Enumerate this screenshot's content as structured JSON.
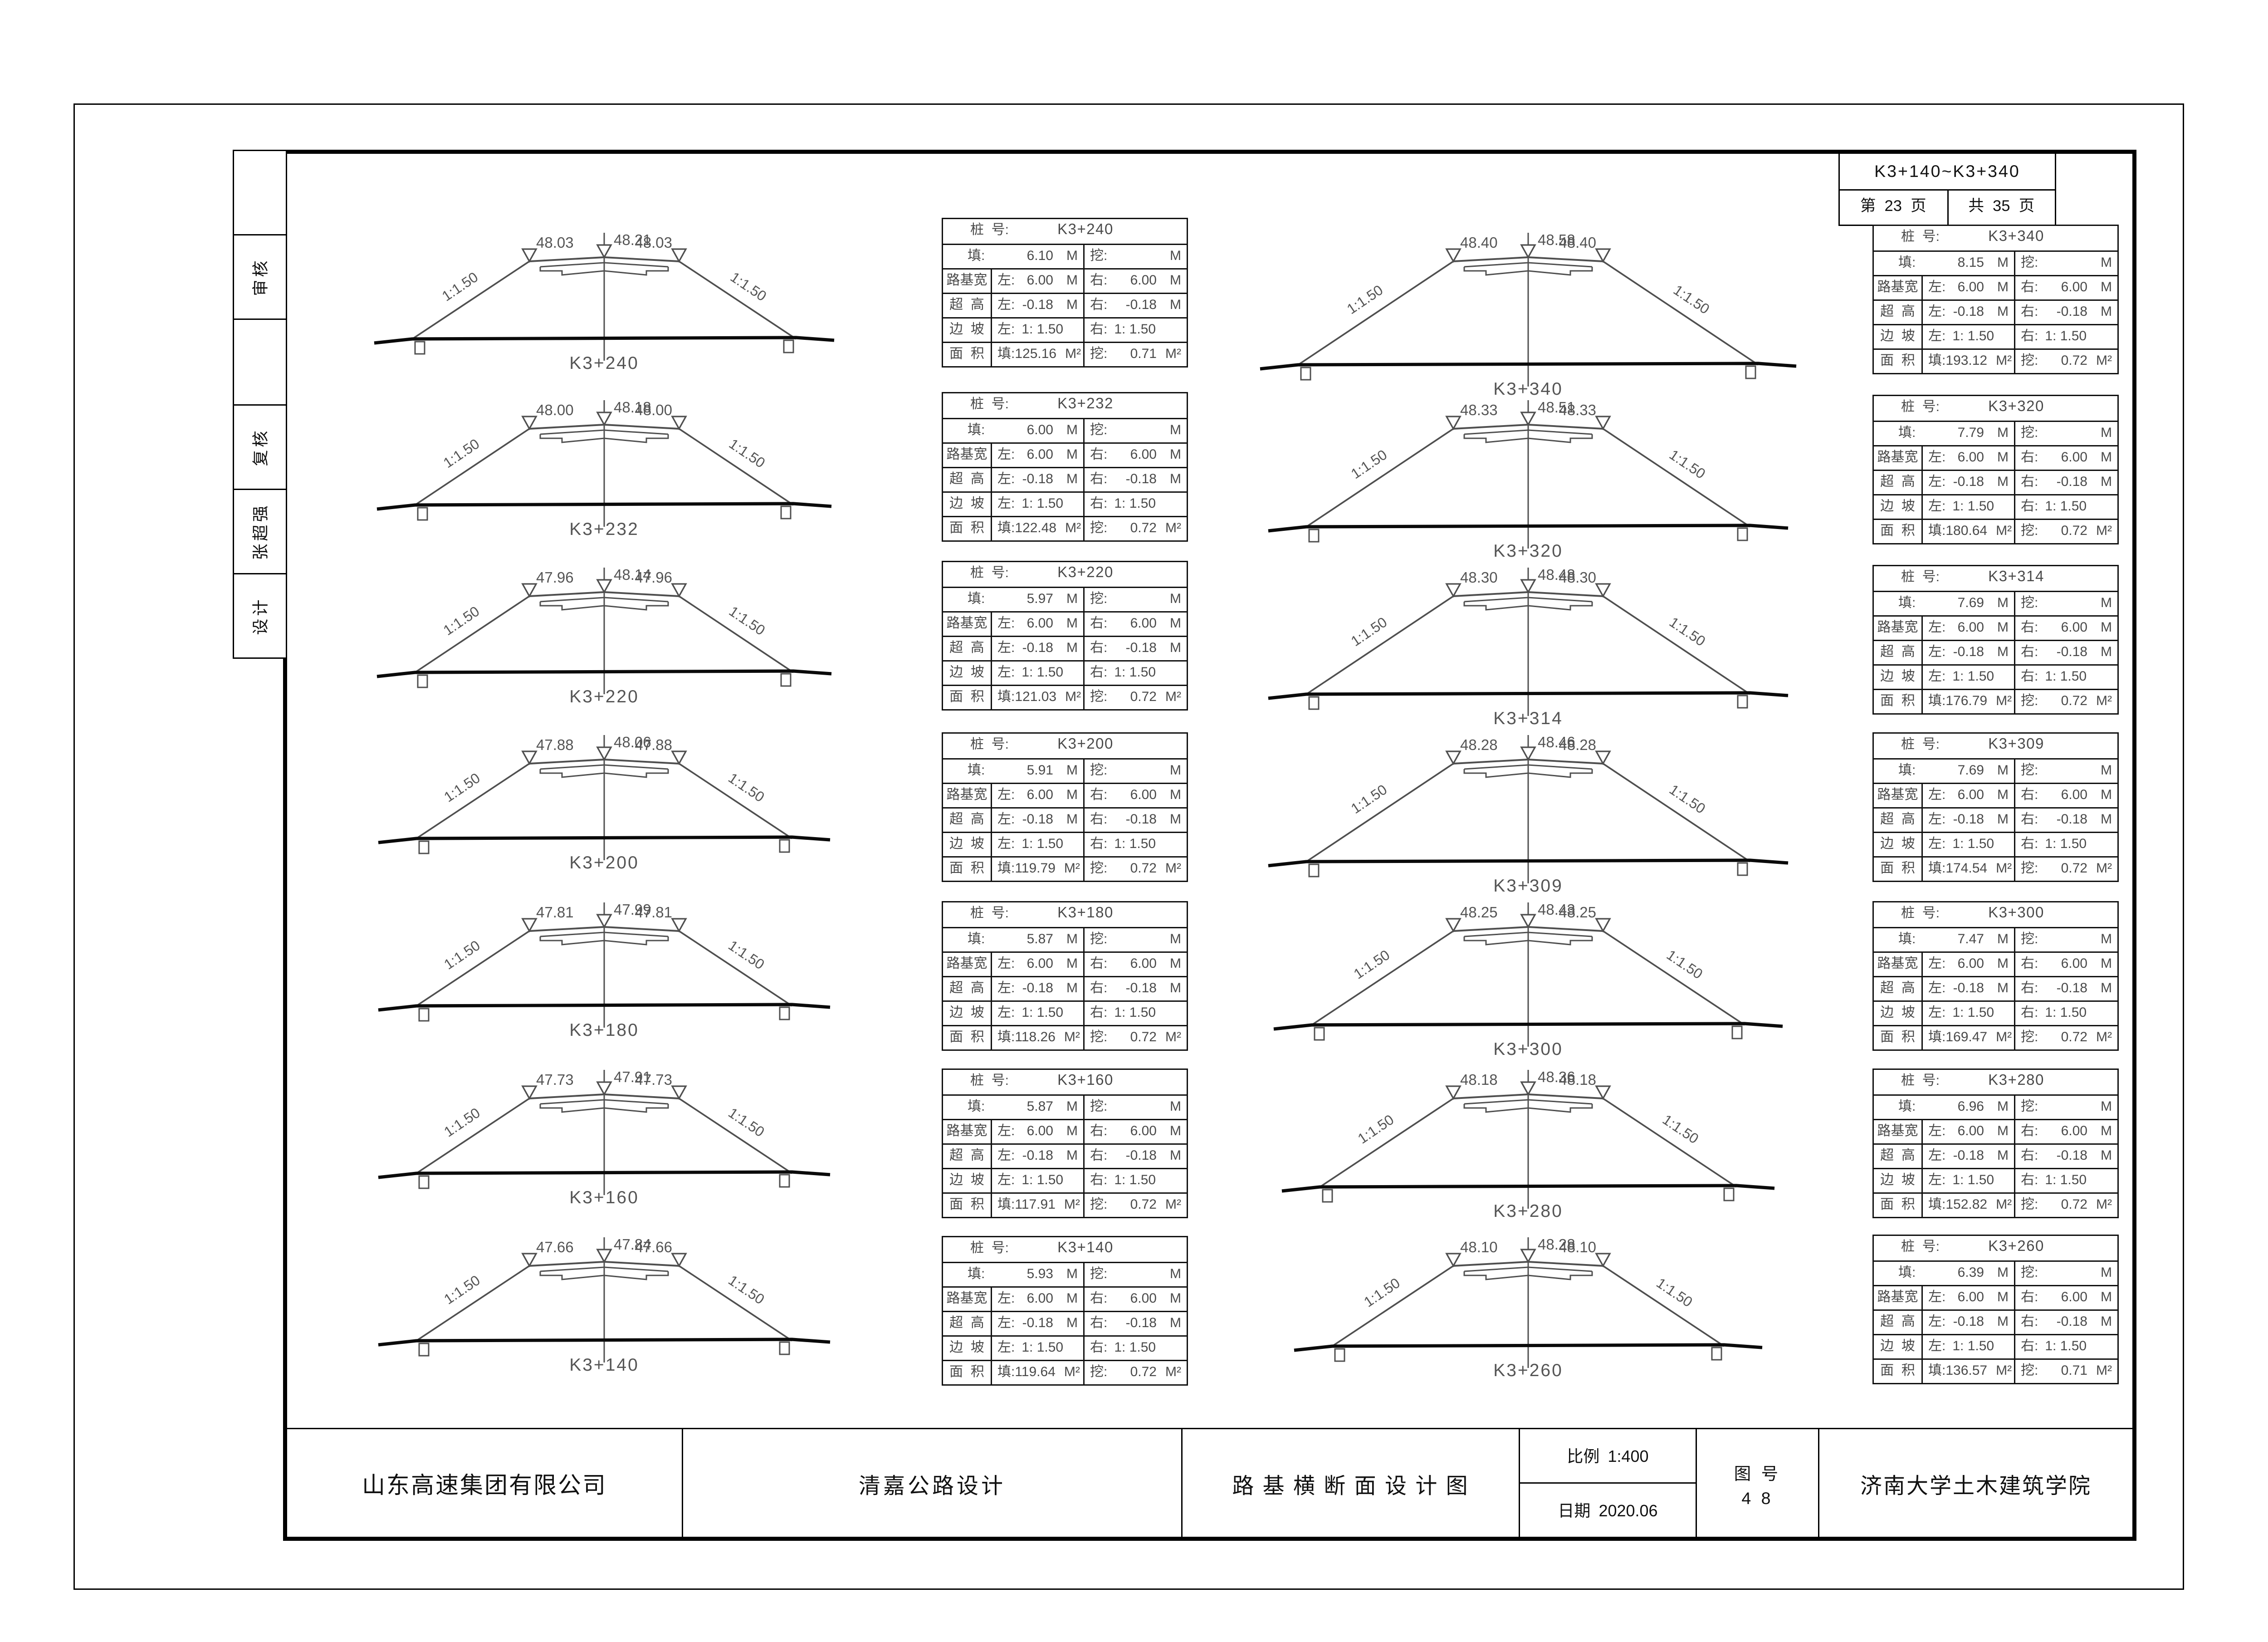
{
  "page_header": {
    "station_range": "K3+140~K3+340",
    "page_no": "第  23  页",
    "pages_total": "共  35  页"
  },
  "signature_strip": {
    "cells": [
      "",
      "审核",
      "",
      "复核",
      "张超强",
      "设计"
    ]
  },
  "table_labels": {
    "station": "桩  号:",
    "fill": "填:",
    "cut": "挖:",
    "roadbed": "路基宽",
    "superelev": "超  高",
    "slope": "边  坡",
    "area": "面  积",
    "left": "左:",
    "right": "右:",
    "m": "M",
    "m2": "M²"
  },
  "common_values": {
    "roadbed_left": "6.00",
    "roadbed_right": "6.00",
    "superelev_left": "-0.18",
    "superelev_right": "-0.18",
    "slope_left": "1: 1.50",
    "slope_right": "1: 1.50",
    "cut_depth": "",
    "slope_annotation": "1:1.50"
  },
  "columns": {
    "left_sections": [
      {
        "station": "K3+240",
        "elev_left": "48.03",
        "elev_center": "48.21",
        "elev_right": "48.03",
        "fill_height": "6.10",
        "area_fill": "125.16",
        "area_cut": "0.71"
      },
      {
        "station": "K3+232",
        "elev_left": "48.00",
        "elev_center": "48.18",
        "elev_right": "48.00",
        "fill_height": "6.00",
        "area_fill": "122.48",
        "area_cut": "0.72"
      },
      {
        "station": "K3+220",
        "elev_left": "47.96",
        "elev_center": "48.14",
        "elev_right": "47.96",
        "fill_height": "5.97",
        "area_fill": "121.03",
        "area_cut": "0.72"
      },
      {
        "station": "K3+200",
        "elev_left": "47.88",
        "elev_center": "48.06",
        "elev_right": "47.88",
        "fill_height": "5.91",
        "area_fill": "119.79",
        "area_cut": "0.72"
      },
      {
        "station": "K3+180",
        "elev_left": "47.81",
        "elev_center": "47.99",
        "elev_right": "47.81",
        "fill_height": "5.87",
        "area_fill": "118.26",
        "area_cut": "0.72"
      },
      {
        "station": "K3+160",
        "elev_left": "47.73",
        "elev_center": "47.91",
        "elev_right": "47.73",
        "fill_height": "5.87",
        "area_fill": "117.91",
        "area_cut": "0.72"
      },
      {
        "station": "K3+140",
        "elev_left": "47.66",
        "elev_center": "47.84",
        "elev_right": "47.66",
        "fill_height": "5.93",
        "area_fill": "119.64",
        "area_cut": "0.72"
      }
    ],
    "right_sections": [
      {
        "station": "K3+340",
        "elev_left": "48.40",
        "elev_center": "48.58",
        "elev_right": "48.40",
        "fill_height": "8.15",
        "area_fill": "193.12",
        "area_cut": "0.72"
      },
      {
        "station": "K3+320",
        "elev_left": "48.33",
        "elev_center": "48.51",
        "elev_right": "48.33",
        "fill_height": "7.79",
        "area_fill": "180.64",
        "area_cut": "0.72"
      },
      {
        "station": "K3+314",
        "elev_left": "48.30",
        "elev_center": "48.48",
        "elev_right": "48.30",
        "fill_height": "7.69",
        "area_fill": "176.79",
        "area_cut": "0.72"
      },
      {
        "station": "K3+309",
        "elev_left": "48.28",
        "elev_center": "48.46",
        "elev_right": "48.28",
        "fill_height": "7.69",
        "area_fill": "174.54",
        "area_cut": "0.72"
      },
      {
        "station": "K3+300",
        "elev_left": "48.25",
        "elev_center": "48.43",
        "elev_right": "48.25",
        "fill_height": "7.47",
        "area_fill": "169.47",
        "area_cut": "0.72"
      },
      {
        "station": "K3+280",
        "elev_left": "48.18",
        "elev_center": "48.36",
        "elev_right": "48.18",
        "fill_height": "6.96",
        "area_fill": "152.82",
        "area_cut": "0.72"
      },
      {
        "station": "K3+260",
        "elev_left": "48.10",
        "elev_center": "48.28",
        "elev_right": "48.10",
        "fill_height": "6.39",
        "area_fill": "136.57",
        "area_cut": "0.71"
      }
    ]
  },
  "title_block": {
    "company": "山东高速集团有限公司",
    "project": "清嘉公路设计",
    "drawing_title": "路 基 横 断 面 设 计 图",
    "scale_label": "比例",
    "scale_value": "1:400",
    "date_label": "日期",
    "date_value": "2020.06",
    "figure_no_label": "图 号",
    "figure_no_value": "4 8",
    "institute": "济南大学土木建筑学院"
  }
}
